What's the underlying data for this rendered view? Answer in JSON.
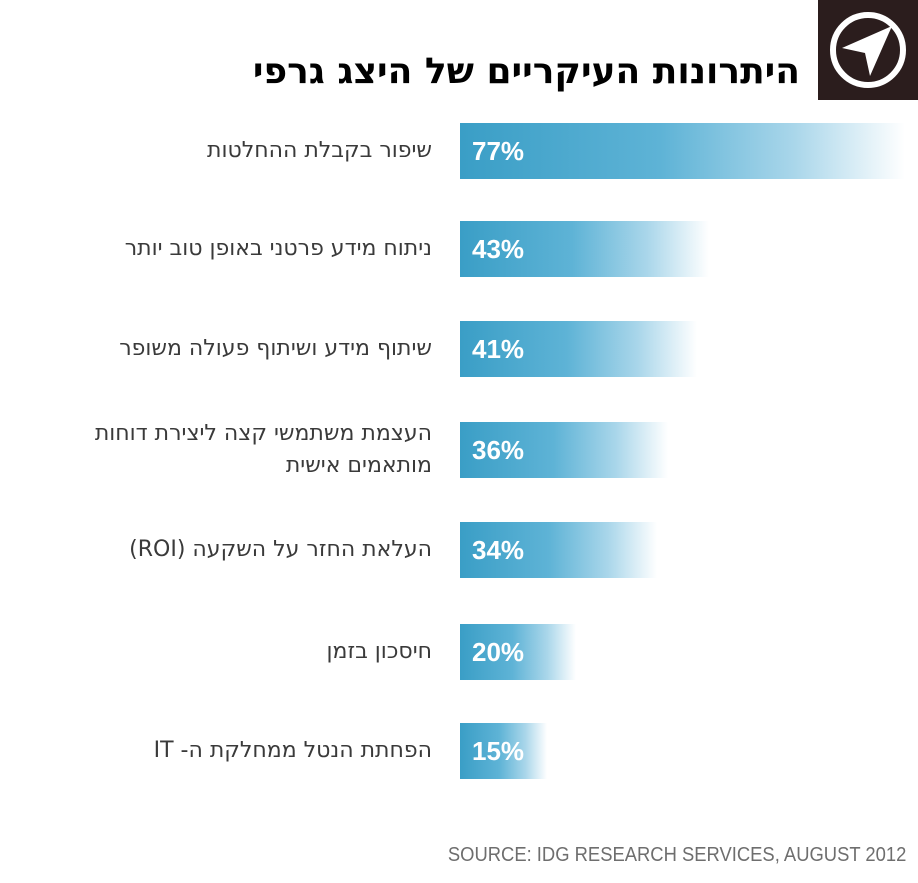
{
  "title": "היתרונות העיקריים של היצג גרפי",
  "logo": {
    "icon": "compass-icon",
    "background": "#2b1d1d",
    "foreground": "#ffffff"
  },
  "source": "SOURCE: IDG RESEARCH SERVICES, AUGUST 2012",
  "chart_data": {
    "type": "bar",
    "orientation": "horizontal",
    "title": "היתרונות העיקריים של היצג גרפי",
    "categories": [
      "שיפור בקבלת ההחלטות",
      "ניתוח מידע פרטני באופן טוב יותר",
      "שיתוף מידע ושיתוף פעולה משופר",
      "העצמת משתמשי קצה ליצירת דוחות מותאמים אישית",
      "העלאת החזר על השקעה (ROI)",
      "חיסכון בזמן",
      "הפחתת הנטל ממחלקת ה- IT"
    ],
    "values": [
      77,
      43,
      41,
      36,
      34,
      20,
      15
    ],
    "value_labels": [
      "77%",
      "43%",
      "41%",
      "36%",
      "34%",
      "20%",
      "15%"
    ],
    "unit": "%",
    "xlim": [
      0,
      100
    ],
    "grid": false,
    "legend": "none",
    "bar_color": "#3a9ec6"
  }
}
